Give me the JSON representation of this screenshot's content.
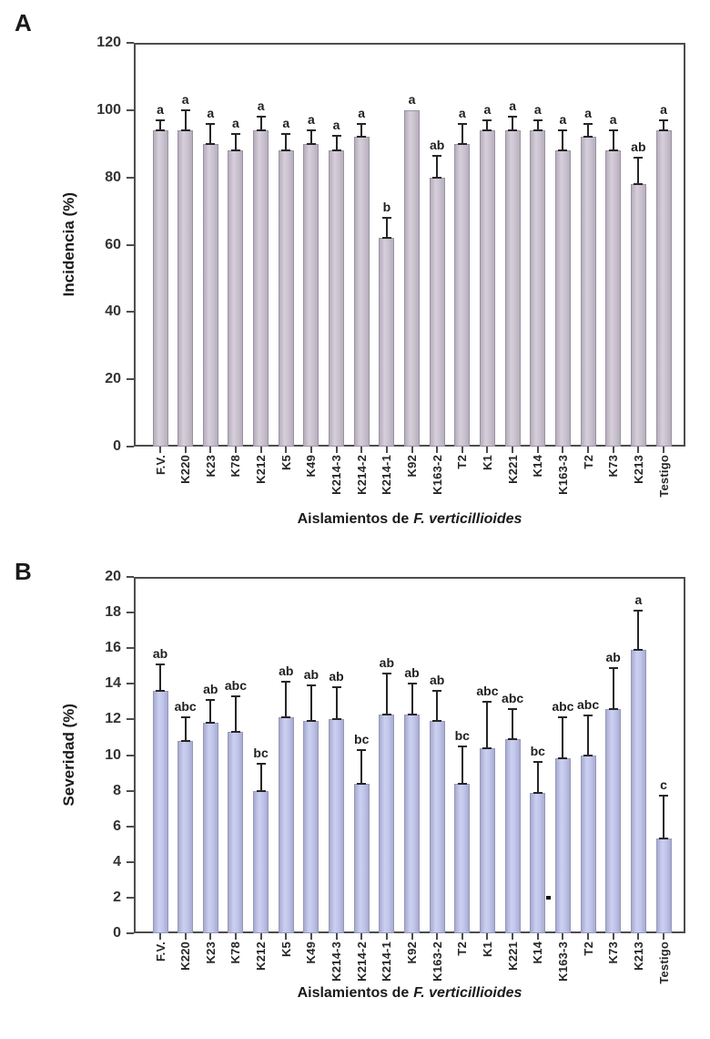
{
  "figure_title": "",
  "chart_data": [
    {
      "type": "bar",
      "panel_label": "A",
      "ylabel": "Incidencia (%)",
      "xlabel": "Aislamientos de F. verticillioides",
      "xlabel_plain": "Aislamientos de",
      "xlabel_italic": "F. verticillioides",
      "ylim": [
        0,
        120
      ],
      "ytick_interval": 20,
      "grid": false,
      "legend": null,
      "bar_color": "#cbc3d0",
      "bar_border_color": "#9a92a3",
      "bar_gradient": [
        "#b7aebd",
        "#d6cfda",
        "#c9c1ce",
        "#b7aebd"
      ],
      "categories": [
        "F.V.",
        "K220",
        "K23",
        "K78",
        "K212",
        "K5",
        "K49",
        "K214-3",
        "K214-2",
        "K214-1",
        "K92",
        "K163-2",
        "T2",
        "K1",
        "K221",
        "K14",
        "K163-3",
        "T2",
        "K73",
        "K213",
        "Testigo"
      ],
      "values": [
        94,
        94,
        90,
        88,
        94,
        88,
        90,
        88,
        92,
        62,
        100,
        80,
        90,
        94,
        94,
        94,
        88,
        92,
        88,
        78,
        94
      ],
      "errors": [
        3,
        6,
        6,
        5,
        4,
        5,
        4,
        4.5,
        4,
        6,
        0,
        6.5,
        6,
        3,
        4,
        3,
        6,
        4,
        6,
        8,
        3
      ],
      "sig_letters": [
        "a",
        "a",
        "a",
        "a",
        "a",
        "a",
        "a",
        "a",
        "a",
        "b",
        "a",
        "ab",
        "a",
        "a",
        "a",
        "a",
        "a",
        "a",
        "a",
        "ab",
        "a"
      ],
      "annotations": []
    },
    {
      "type": "bar",
      "panel_label": "B",
      "ylabel": "Severidad (%)",
      "xlabel": "Aislamientos de F. verticillioides",
      "xlabel_plain": "Aislamientos de",
      "xlabel_italic": "F. verticillioides",
      "ylim": [
        0,
        20
      ],
      "ytick_interval": 2,
      "grid": false,
      "legend": null,
      "bar_color": "#c3c6ea",
      "bar_border_color": "#9698b8",
      "bar_gradient": [
        "#a8abd0",
        "#ccd0f0",
        "#c0c4ea",
        "#a8abd0"
      ],
      "categories": [
        "F.V.",
        "K220",
        "K23",
        "K78",
        "K212",
        "K5",
        "K49",
        "K214-3",
        "K214-2",
        "K214-1",
        "K92",
        "K163-2",
        "T2",
        "K1",
        "K221",
        "K14",
        "K163-3",
        "T2",
        "K73",
        "K213",
        "Testigo"
      ],
      "values": [
        13.6,
        10.8,
        11.8,
        11.3,
        8.0,
        12.1,
        11.9,
        12.0,
        8.4,
        12.3,
        12.3,
        11.9,
        8.4,
        10.4,
        10.9,
        7.9,
        9.8,
        10.0,
        12.6,
        15.9,
        5.3
      ],
      "errors": [
        1.5,
        1.3,
        1.3,
        2.0,
        1.5,
        2.0,
        2.0,
        1.8,
        1.9,
        2.3,
        1.7,
        1.7,
        2.1,
        2.6,
        1.7,
        1.7,
        2.3,
        2.2,
        2.3,
        2.2,
        2.4
      ],
      "sig_letters": [
        "ab",
        "abc",
        "ab",
        "abc",
        "bc",
        "ab",
        "ab",
        "ab",
        "bc",
        "ab",
        "ab",
        "ab",
        "bc",
        "abc",
        "abc",
        "bc",
        "abc",
        "abc",
        "ab",
        "a",
        "c"
      ],
      "annotations": [
        {
          "x_slot": 16.0,
          "value": 2,
          "marker": "square"
        }
      ]
    }
  ]
}
